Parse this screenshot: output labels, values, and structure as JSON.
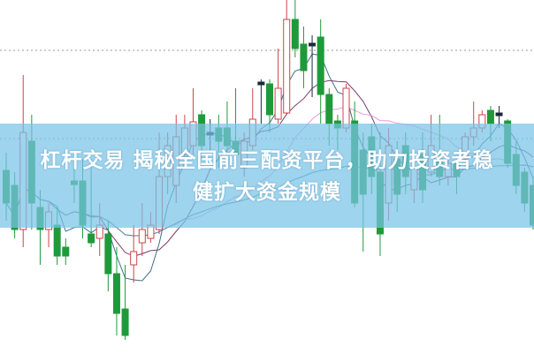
{
  "caption": {
    "line1": "杠杆交易 揭秘全国前三配资平台，助力投资者稳",
    "line2": "健扩大资金规模"
  },
  "colors": {
    "up": "#d0424a",
    "down": "#1f9a3a",
    "doji": "#1a2a3a",
    "banner": "#78c3e6",
    "ma5": "#3d6f8a",
    "ma10": "#7a3d6a",
    "ma20": "#e89ae0",
    "ma60": "#4a8aa8",
    "grid": "#999999"
  },
  "chart_data": {
    "type": "candlestick",
    "title": "",
    "xlabel": "",
    "ylabel": "",
    "ylim": [
      0,
      40
    ],
    "grid": "dotted horizontal",
    "gridlines": [
      34.3,
      24.3
    ],
    "moving_averages": [
      5,
      10,
      20,
      60
    ],
    "ohlc": [
      [
        20.7,
        22.7,
        15.0,
        17.0
      ],
      [
        19,
        20.5,
        13,
        14
      ],
      [
        14,
        31.5,
        12,
        25
      ],
      [
        24,
        27,
        14,
        17
      ],
      [
        16.5,
        18.5,
        10,
        14
      ],
      [
        14,
        17,
        12,
        16
      ],
      [
        14.5,
        16.5,
        10,
        11
      ],
      [
        12,
        13,
        10,
        11
      ],
      [
        19.5,
        21,
        17,
        19.1
      ],
      [
        19.5,
        22,
        13,
        14.5
      ],
      [
        13.5,
        22,
        12,
        12.5
      ],
      [
        13,
        17,
        11,
        14.5
      ],
      [
        13.5,
        15,
        7,
        9
      ],
      [
        9,
        12,
        2,
        4.5
      ],
      [
        5,
        10,
        1.5,
        2
      ],
      [
        10,
        14.5,
        8,
        11.5
      ],
      [
        12.5,
        17,
        11,
        14
      ],
      [
        13,
        16,
        12.5,
        14.5
      ],
      [
        14,
        25,
        13.5,
        20
      ],
      [
        20,
        25,
        18,
        23.5
      ],
      [
        19,
        27,
        17,
        24.5
      ],
      [
        22.5,
        27,
        21,
        25.5
      ],
      [
        23.5,
        30,
        22.5,
        26.2
      ],
      [
        27,
        27.5,
        22,
        23.5
      ],
      [
        25,
        26.5,
        23,
        24.9
      ],
      [
        25.5,
        27,
        21,
        24
      ],
      [
        25.5,
        28.5,
        22,
        23.5
      ],
      [
        24,
        30,
        21,
        22.5
      ],
      [
        21,
        25,
        20,
        24
      ],
      [
        23.5,
        30,
        23,
        26.5
      ],
      [
        30.7,
        31,
        26,
        30.5
      ],
      [
        30.5,
        31,
        25,
        27
      ],
      [
        26.5,
        34.5,
        26,
        30
      ],
      [
        27.2,
        40,
        27,
        37.8
      ],
      [
        37.8,
        40,
        33.5,
        34.5
      ],
      [
        35,
        37,
        30,
        32
      ],
      [
        35,
        36,
        29,
        35.1
      ],
      [
        35.8,
        37.8,
        26,
        29.3
      ],
      [
        29.3,
        30,
        23.5,
        26
      ],
      [
        26.3,
        27,
        23,
        25.5
      ],
      [
        25.5,
        30.5,
        25,
        30
      ],
      [
        26.3,
        28.5,
        16.5,
        17
      ],
      [
        23,
        25,
        11.5,
        18
      ],
      [
        24.5,
        26,
        18,
        20
      ],
      [
        20.5,
        25,
        11,
        13.5
      ],
      [
        17,
        25.5,
        15,
        23.5
      ],
      [
        22,
        24,
        16,
        18
      ],
      [
        23.5,
        25,
        18,
        20
      ],
      [
        18.5,
        23,
        17,
        21
      ],
      [
        22.5,
        25,
        17,
        18.5
      ],
      [
        20.5,
        27,
        20,
        23.5
      ],
      [
        22,
        27,
        19,
        20
      ],
      [
        20,
        22,
        19,
        21.5
      ],
      [
        21.5,
        22,
        18,
        20
      ],
      [
        22,
        25,
        21,
        24.5
      ],
      [
        24.5,
        28.5,
        23.5,
        25.5
      ],
      [
        25.5,
        27.5,
        25,
        27
      ],
      [
        27.5,
        28,
        24,
        26
      ],
      [
        27.2,
        28,
        25.5,
        27.1
      ],
      [
        26.3,
        26.5,
        21,
        21.5
      ],
      [
        22.5,
        24,
        18,
        19
      ],
      [
        20.5,
        21,
        16,
        17
      ],
      [
        19,
        20,
        14,
        14.5
      ]
    ]
  }
}
